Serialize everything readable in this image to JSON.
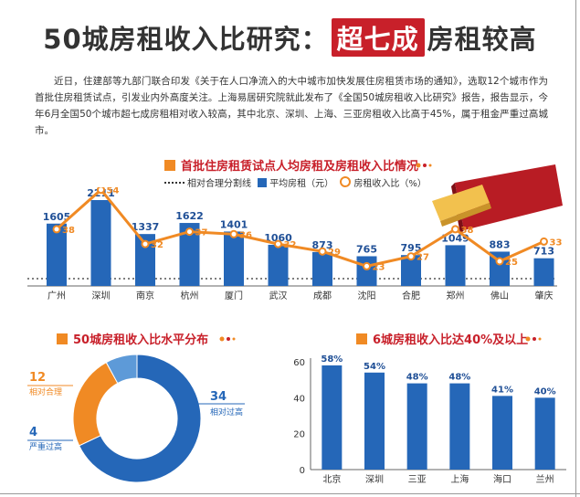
{
  "header": {
    "title_pre": "50城房租收入比研究：",
    "title_highlight": "超七成",
    "title_post": "房租较高"
  },
  "intro": "近日，住建部等九部门联合印发《关于在人口净流入的大中城市加快发展住房租赁市场的通知》，选取12个城市作为首批住房租赁试点，引发业内外高度关注。上海易居研究院就此发布了《全国50城房租收入比研究》报告，报告显示，今年6月全国50个城市超七成房租相对收入较高，其中北京、深圳、上海、三亚房租收入比高于45%，属于租金严重过高城市。",
  "section1": {
    "title": "首批住房租赁试点人均房租及房租收入比情况",
    "legend": {
      "threshold": "相对合理分割线",
      "rent": "平均房租（元）",
      "ratio": "房租收入比（%）"
    }
  },
  "section2": {
    "title": "50城房租收入比水平分布"
  },
  "section3": {
    "title": "6城房租收入比达40%及以上"
  },
  "colors": {
    "blue": "#2567b8",
    "orange": "#f08a24",
    "red": "#c8202a",
    "gray": "#999999"
  },
  "chart_data": [
    {
      "type": "bar",
      "title": "首批住房租赁试点人均房租及房租收入比情况",
      "categories": [
        "广州",
        "深圳",
        "南京",
        "杭州",
        "厦门",
        "武汉",
        "成都",
        "沈阳",
        "合肥",
        "郑州",
        "佛山",
        "肇庆"
      ],
      "series": [
        {
          "name": "平均房租（元）",
          "type": "bar",
          "values": [
            1605,
            2211,
            1337,
            1622,
            1401,
            1060,
            873,
            765,
            795,
            1049,
            883,
            713
          ]
        },
        {
          "name": "房租收入比（%）",
          "type": "line",
          "values": [
            38,
            54,
            32,
            37,
            36,
            32,
            29,
            23,
            27,
            38,
            25,
            33
          ]
        }
      ],
      "threshold_series": "相对合理分割线"
    },
    {
      "type": "pie",
      "title": "50城房租收入比水平分布",
      "slices": [
        {
          "label": "相对过高",
          "value": 34
        },
        {
          "label": "相对合理",
          "value": 12
        },
        {
          "label": "严重过高",
          "value": 4
        }
      ]
    },
    {
      "type": "bar",
      "title": "6城房租收入比达40%及以上",
      "categories": [
        "北京",
        "深圳",
        "三亚",
        "上海",
        "海口",
        "兰州"
      ],
      "values": [
        58,
        54,
        48,
        48,
        41,
        40
      ],
      "value_labels": [
        "58%",
        "54%",
        "48%",
        "48%",
        "41%",
        "40%"
      ],
      "yticks": [
        0,
        20,
        40,
        60
      ],
      "ylim": [
        0,
        60
      ]
    }
  ]
}
